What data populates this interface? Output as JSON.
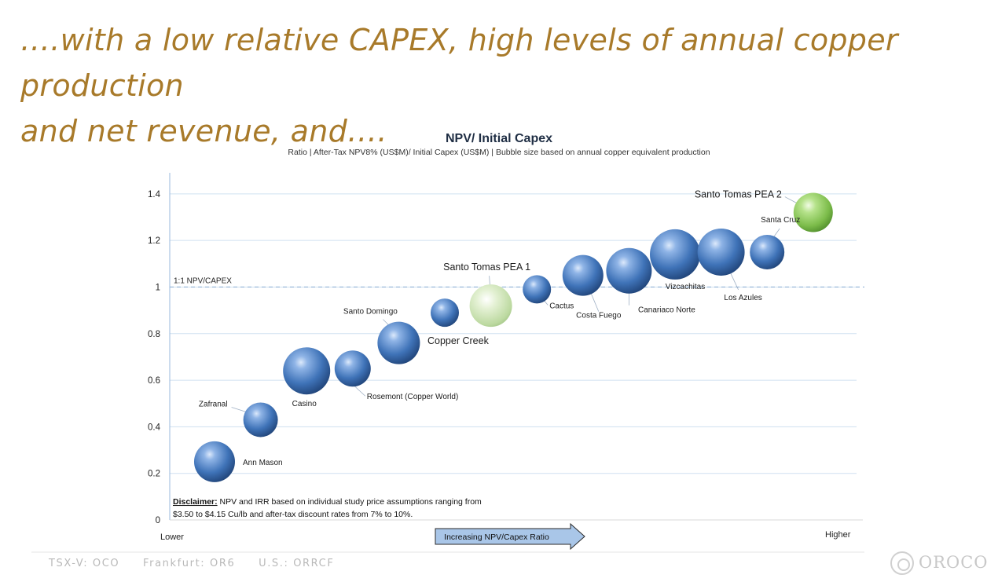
{
  "headline": {
    "line1": "….with a low relative CAPEX, high levels of annual copper production",
    "line2": "and net revenue, and…."
  },
  "footer": {
    "tsx": "TSX-V: OCO",
    "frankfurt": "Frankfurt: OR6",
    "us": "U.S.: ORRCF"
  },
  "logo": {
    "text": "OROCO",
    "icon": "oroco-logo-icon"
  },
  "chart_data": {
    "type": "scatter",
    "title": "NPV/ Initial Capex",
    "subtitle": "Ratio  |  After-Tax NPV8% (US$M)/ Initial Capex (US$M)  |  Bubble size based on annual copper equivalent production",
    "ylim": [
      0,
      1.45
    ],
    "yticks": [
      "0",
      "0.2",
      "0.4",
      "0.6",
      "0.8",
      "1",
      "1.2",
      "1.4"
    ],
    "x_left_label": "Lower",
    "x_right_label": "Higher",
    "x_arrow_label": "Increasing  NPV/Capex Ratio",
    "reference_line": {
      "y": 1.0,
      "label": "1:1 NPV/CAPEX"
    },
    "disclaimer_title": "Disclaimer:",
    "disclaimer_line1": " NPV and IRR based on individual study price assumptions ranging from",
    "disclaimer_line2": "$3.50 to $4.15 Cu/lb and after-tax discount rates from 7% to 10%.",
    "colors": {
      "blue": "#3f73b8",
      "green": "#8fcf5a",
      "ghost": "#cfe6b0",
      "grid": "#cfe0f0"
    },
    "points": [
      {
        "name": "Ann Mason",
        "rank": 1,
        "y": 0.25,
        "size": 26,
        "color": "blue"
      },
      {
        "name": "Zafranal",
        "rank": 2,
        "y": 0.43,
        "size": 22,
        "color": "blue"
      },
      {
        "name": "Casino",
        "rank": 3,
        "y": 0.64,
        "size": 30,
        "color": "blue"
      },
      {
        "name": "Rosemont (Copper World)",
        "rank": 4,
        "y": 0.65,
        "size": 23,
        "color": "blue"
      },
      {
        "name": "Santo Domingo",
        "rank": 5,
        "y": 0.76,
        "size": 27,
        "color": "blue"
      },
      {
        "name": "Copper Creek",
        "rank": 6,
        "y": 0.89,
        "size": 18,
        "color": "blue"
      },
      {
        "name": "Santo Tomas PEA 1",
        "rank": 7,
        "y": 0.92,
        "size": 27,
        "color": "ghost"
      },
      {
        "name": "Cactus",
        "rank": 8,
        "y": 0.99,
        "size": 18,
        "color": "blue"
      },
      {
        "name": "Costa Fuego",
        "rank": 9,
        "y": 1.05,
        "size": 26,
        "color": "blue"
      },
      {
        "name": "Canariaco Norte",
        "rank": 10,
        "y": 1.07,
        "size": 29,
        "color": "blue"
      },
      {
        "name": "Vizcachitas",
        "rank": 11,
        "y": 1.14,
        "size": 32,
        "color": "blue"
      },
      {
        "name": "Los Azules",
        "rank": 12,
        "y": 1.15,
        "size": 30,
        "color": "blue"
      },
      {
        "name": "Santa Cruz",
        "rank": 13,
        "y": 1.15,
        "size": 22,
        "color": "blue"
      },
      {
        "name": "Santo Tomas PEA 2",
        "rank": 14,
        "y": 1.32,
        "size": 25,
        "color": "green"
      }
    ]
  }
}
